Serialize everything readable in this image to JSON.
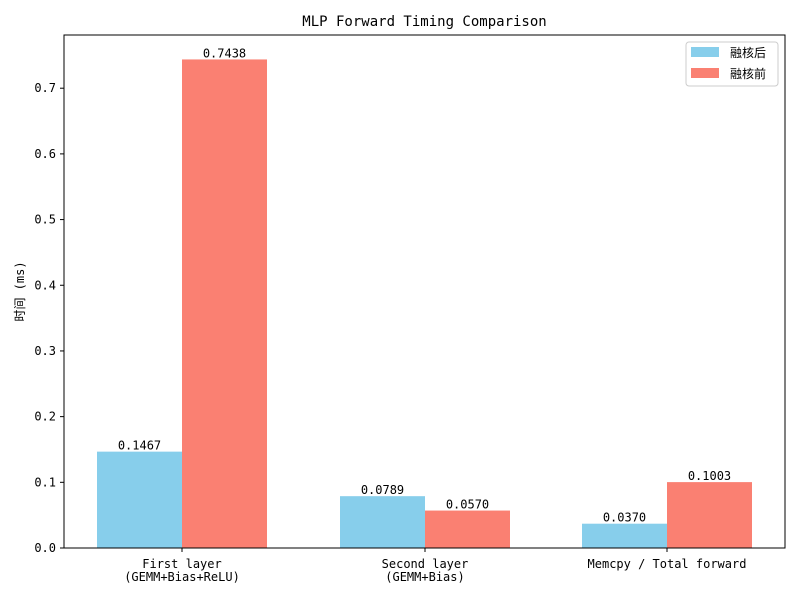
{
  "chart_data": {
    "type": "bar",
    "title": "MLP Forward Timing Comparison",
    "xlabel": "",
    "ylabel": "时间 (ms)",
    "categories": [
      [
        "First layer",
        "(GEMM+Bias+ReLU)"
      ],
      [
        "Second layer",
        "(GEMM+Bias)"
      ],
      [
        "Memcpy / Total forward"
      ]
    ],
    "series": [
      {
        "name": "融核后",
        "color": "#87CEEB",
        "values": [
          0.1467,
          0.0789,
          0.037
        ],
        "labels": [
          "0.1467",
          "0.0789",
          "0.0370"
        ]
      },
      {
        "name": "融核前",
        "color": "#FA8072",
        "values": [
          0.7438,
          0.057,
          0.1003
        ],
        "labels": [
          "0.7438",
          "0.0570",
          "0.1003"
        ]
      }
    ],
    "ylim": [
      0,
      0.781
    ],
    "yticks": [
      0.0,
      0.1,
      0.2,
      0.3,
      0.4,
      0.5,
      0.6,
      0.7
    ],
    "ytick_labels": [
      "0.0",
      "0.1",
      "0.2",
      "0.3",
      "0.4",
      "0.5",
      "0.6",
      "0.7"
    ],
    "grid": false,
    "legend_position": "top-right"
  }
}
